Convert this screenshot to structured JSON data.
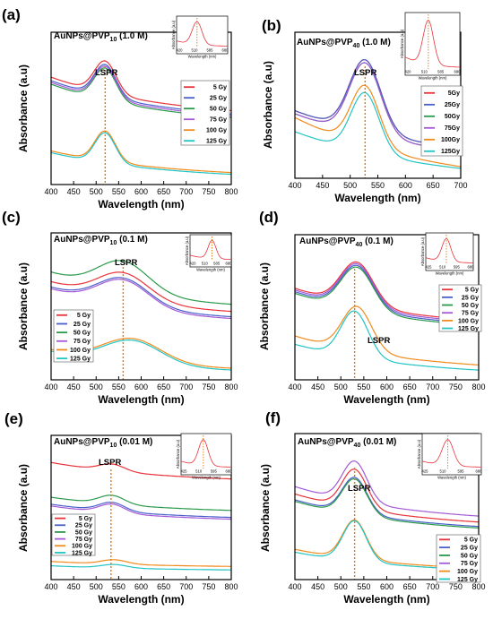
{
  "figure": {
    "series_names": [
      "5 Gy",
      "25 Gy",
      "50 Gy",
      "75 Gy",
      "100 Gy",
      "125 Gy"
    ],
    "series_names_b": [
      "5Gy",
      "25Gy",
      "50Gy",
      "75Gy",
      "100Gy",
      "125Gy"
    ],
    "colors": [
      "#e8333a",
      "#4a5fc9",
      "#2a9a4a",
      "#a35ad6",
      "#f08a1c",
      "#22c4c4"
    ]
  },
  "chart_data": [
    {
      "type": "line",
      "panel": "(a)",
      "title_prefix": "AuNPs@PVP",
      "title_sub": "10",
      "title_conc": "(1.0 M)",
      "xlabel": "Wavelength (nm)",
      "ylabel": "Absorbance (a.u)",
      "xlim": [
        400,
        800
      ],
      "xticks": [
        400,
        450,
        500,
        550,
        600,
        650,
        700,
        750,
        800
      ],
      "annotation": "LSPR",
      "peak_x": 520,
      "legend": [
        "5 Gy",
        "25 Gy",
        "50 Gy",
        "75 Gy",
        "100 Gy",
        "125 Gy"
      ],
      "series": [
        {
          "name": "5 Gy",
          "color": "#e8333a",
          "peak": 520,
          "base": 0.62,
          "height": 0.18,
          "width": 34,
          "slope": 0.4
        },
        {
          "name": "25 Gy",
          "color": "#4a5fc9",
          "peak": 520,
          "base": 0.6,
          "height": 0.18,
          "width": 34,
          "slope": 0.4
        },
        {
          "name": "50 Gy",
          "color": "#2a9a4a",
          "peak": 520,
          "base": 0.58,
          "height": 0.18,
          "width": 34,
          "slope": 0.4
        },
        {
          "name": "75 Gy",
          "color": "#a35ad6",
          "peak": 520,
          "base": 0.59,
          "height": 0.18,
          "width": 34,
          "slope": 0.4
        },
        {
          "name": "100 Gy",
          "color": "#f08a1c",
          "peak": 520,
          "base": 0.27,
          "height": 0.17,
          "width": 32,
          "slope": 0.26
        },
        {
          "name": "125 Gy",
          "color": "#22c4c4",
          "peak": 520,
          "base": 0.26,
          "height": 0.17,
          "width": 32,
          "slope": 0.26
        }
      ],
      "inset": {
        "xlabel": "Wavelength (nm)",
        "ylabel": "Absorbance (a.u)",
        "xticks": [
          420,
          510,
          585,
          680
        ],
        "peak_x": 520
      }
    },
    {
      "type": "line",
      "panel": "(b)",
      "title_prefix": "AuNPs@PVP",
      "title_sub": "40",
      "title_conc": "(1.0 M)",
      "xlabel": "Wavelength (nm)",
      "ylabel": "Absorbance (a.u)",
      "xlim": [
        400,
        700
      ],
      "xticks": [
        400,
        450,
        500,
        550,
        600,
        650,
        700
      ],
      "annotation": "LSPR",
      "peak_x": 527,
      "legend": [
        "5Gy",
        "25Gy",
        "50Gy",
        "75Gy",
        "100Gy",
        "125Gy"
      ],
      "series": [
        {
          "name": "5Gy",
          "color": "#e8333a",
          "peak": 527,
          "base": 0.5,
          "height": 0.24,
          "width": 40,
          "slope": 0.3
        },
        {
          "name": "25Gy",
          "color": "#4a5fc9",
          "peak": 527,
          "base": 0.5,
          "height": 0.24,
          "width": 40,
          "slope": 0.3
        },
        {
          "name": "50Gy",
          "color": "#2a9a4a",
          "peak": 527,
          "base": 0.49,
          "height": 0.24,
          "width": 40,
          "slope": 0.3
        },
        {
          "name": "75Gy",
          "color": "#a35ad6",
          "peak": 527,
          "base": 0.49,
          "height": 0.24,
          "width": 40,
          "slope": 0.3
        },
        {
          "name": "100Gy",
          "color": "#f08a1c",
          "peak": 527,
          "base": 0.43,
          "height": 0.2,
          "width": 36,
          "slope": 0.4
        },
        {
          "name": "125Gy",
          "color": "#22c4c4",
          "peak": 527,
          "base": 0.43,
          "height": 0.2,
          "width": 36,
          "slope": 0.3
        }
      ],
      "inset": {
        "xlabel": "Wavelength (nm)",
        "ylabel": "Absorbance (a.u)",
        "xticks": [
          420,
          510,
          585,
          680
        ],
        "peak_x": 527
      }
    },
    {
      "type": "line",
      "panel": "(c)",
      "title_prefix": "AuNPs@PVP",
      "title_sub": "10",
      "title_conc": "(0.1 M)",
      "xlabel": "Wavelength (nm)",
      "ylabel": "Absorbance (a.u)",
      "xlim": [
        400,
        800
      ],
      "xticks": [
        400,
        450,
        500,
        550,
        600,
        650,
        700,
        750,
        800
      ],
      "annotation": "LSPR",
      "peak_x": 560,
      "legend": [
        "5 Gy",
        "25 Gy",
        "50 Gy",
        "75 Gy",
        "100 Gy",
        "125 Gy"
      ],
      "series": [
        {
          "name": "5 Gy",
          "color": "#e8333a",
          "peak": 560,
          "base": 0.58,
          "height": 0.15,
          "width": 80,
          "slope": 0.35
        },
        {
          "name": "25 Gy",
          "color": "#4a5fc9",
          "peak": 560,
          "base": 0.55,
          "height": 0.15,
          "width": 80,
          "slope": 0.35
        },
        {
          "name": "50 Gy",
          "color": "#2a9a4a",
          "peak": 560,
          "base": 0.62,
          "height": 0.17,
          "width": 80,
          "slope": 0.38
        },
        {
          "name": "75 Gy",
          "color": "#a35ad6",
          "peak": 560,
          "base": 0.54,
          "height": 0.15,
          "width": 80,
          "slope": 0.35
        },
        {
          "name": "100 Gy",
          "color": "#f08a1c",
          "peak": 580,
          "base": 0.26,
          "height": 0.13,
          "width": 90,
          "slope": 0.22
        },
        {
          "name": "125 Gy",
          "color": "#22c4c4",
          "peak": 580,
          "base": 0.25,
          "height": 0.13,
          "width": 90,
          "slope": 0.22
        }
      ],
      "inset": {
        "xlabel": "Wavelength (nm)",
        "ylabel": "Absorbance (a.u)",
        "xticks": [
          420,
          510,
          585,
          680
        ],
        "peak_x": 560
      }
    },
    {
      "type": "line",
      "panel": "(d)",
      "title_prefix": "AuNPs@PVP",
      "title_sub": "40",
      "title_conc": "(0.1 M)",
      "xlabel": "Wavelength (nm)",
      "ylabel": "Absorbance (a.u)",
      "xlim": [
        400,
        800
      ],
      "xticks": [
        400,
        450,
        500,
        550,
        600,
        650,
        700,
        750,
        800
      ],
      "annotation": "LSPR",
      "peak_x": 530,
      "legend": [
        "5 Gy",
        "25 Gy",
        "50 Gy",
        "75 Gy",
        "100 Gy",
        "125 Gy"
      ],
      "series": [
        {
          "name": "5 Gy",
          "color": "#e8333a",
          "peak": 535,
          "base": 0.62,
          "height": 0.25,
          "width": 50,
          "slope": 0.4
        },
        {
          "name": "25 Gy",
          "color": "#4a5fc9",
          "peak": 535,
          "base": 0.6,
          "height": 0.25,
          "width": 50,
          "slope": 0.4
        },
        {
          "name": "50 Gy",
          "color": "#2a9a4a",
          "peak": 535,
          "base": 0.59,
          "height": 0.25,
          "width": 50,
          "slope": 0.4
        },
        {
          "name": "75 Gy",
          "color": "#a35ad6",
          "peak": 535,
          "base": 0.61,
          "height": 0.25,
          "width": 50,
          "slope": 0.4
        },
        {
          "name": "100 Gy",
          "color": "#f08a1c",
          "peak": 535,
          "base": 0.36,
          "height": 0.26,
          "width": 45,
          "slope": 0.36
        },
        {
          "name": "125 Gy",
          "color": "#22c4c4",
          "peak": 530,
          "base": 0.33,
          "height": 0.27,
          "width": 42,
          "slope": 0.32
        }
      ],
      "inset": {
        "xlabel": "Wavelength (nm)",
        "ylabel": "Absorbance (a.u)",
        "xticks": [
          425,
          510,
          595,
          680
        ],
        "peak_x": 530
      }
    },
    {
      "type": "line",
      "panel": "(e)",
      "title_prefix": "AuNPs@PVP",
      "title_sub": "10",
      "title_conc": "(0.01 M)",
      "xlabel": "Wavelength (nm)",
      "ylabel": "Absorbance (a.u)",
      "xlim": [
        400,
        800
      ],
      "xticks": [
        400,
        450,
        500,
        550,
        600,
        650,
        700,
        750,
        800
      ],
      "annotation": "LSPR",
      "peak_x": 533,
      "legend": [
        "5 Gy",
        "25 Gy",
        "50 Gy",
        "75 Gy",
        "100 Gy",
        "125 Gy"
      ],
      "series": [
        {
          "name": "5 Gy",
          "color": "#e8333a",
          "peak": 535,
          "base": 0.74,
          "height": 0.04,
          "width": 40,
          "slope": 0.2
        },
        {
          "name": "25 Gy",
          "color": "#4a5fc9",
          "peak": 535,
          "base": 0.52,
          "height": 0.05,
          "width": 40,
          "slope": 0.16
        },
        {
          "name": "50 Gy",
          "color": "#2a9a4a",
          "peak": 535,
          "base": 0.56,
          "height": 0.05,
          "width": 40,
          "slope": 0.16
        },
        {
          "name": "75 Gy",
          "color": "#a35ad6",
          "peak": 535,
          "base": 0.51,
          "height": 0.05,
          "width": 40,
          "slope": 0.16
        },
        {
          "name": "100 Gy",
          "color": "#f08a1c",
          "peak": 540,
          "base": 0.24,
          "height": 0.025,
          "width": 40,
          "slope": 0.06
        },
        {
          "name": "125 Gy",
          "color": "#22c4c4",
          "peak": 540,
          "base": 0.22,
          "height": 0.02,
          "width": 40,
          "slope": 0.05
        }
      ],
      "inset": {
        "xlabel": "Wavelength (nm)",
        "ylabel": "Absorbance (a.u)",
        "xticks": [
          425,
          510,
          595,
          680
        ],
        "peak_x": 533
      }
    },
    {
      "type": "line",
      "panel": "(f)",
      "title_prefix": "AuNPs@PVP",
      "title_sub": "40",
      "title_conc": "(0.01 M)",
      "xlabel": "Wavelength (nm)",
      "ylabel": "Absorbance (a.u)",
      "xlim": [
        400,
        800
      ],
      "xticks": [
        400,
        450,
        500,
        550,
        600,
        650,
        700,
        750,
        800
      ],
      "annotation": "LSPR",
      "peak_x": 530,
      "legend": [
        "5 Gy",
        "25 Gy",
        "50 Gy",
        "75 Gy",
        "100 Gy",
        "125 Gy"
      ],
      "series": [
        {
          "name": "5 Gy",
          "color": "#e8333a",
          "peak": 530,
          "base": 0.56,
          "height": 0.26,
          "width": 38,
          "slope": 0.4
        },
        {
          "name": "25 Gy",
          "color": "#4a5fc9",
          "peak": 530,
          "base": 0.53,
          "height": 0.24,
          "width": 38,
          "slope": 0.38
        },
        {
          "name": "50 Gy",
          "color": "#2a9a4a",
          "peak": 530,
          "base": 0.52,
          "height": 0.24,
          "width": 38,
          "slope": 0.38
        },
        {
          "name": "75 Gy",
          "color": "#a35ad6",
          "peak": 530,
          "base": 0.6,
          "height": 0.27,
          "width": 38,
          "slope": 0.42
        },
        {
          "name": "100 Gy",
          "color": "#f08a1c",
          "peak": 530,
          "base": 0.25,
          "height": 0.26,
          "width": 36,
          "slope": 0.27
        },
        {
          "name": "125 Gy",
          "color": "#22c4c4",
          "peak": 530,
          "base": 0.24,
          "height": 0.27,
          "width": 36,
          "slope": 0.25
        }
      ],
      "inset": {
        "xlabel": "Wavelength (nm)",
        "ylabel": "Absorbance (a.u)",
        "xticks": [
          425,
          510,
          595,
          680
        ],
        "peak_x": 530
      }
    }
  ]
}
